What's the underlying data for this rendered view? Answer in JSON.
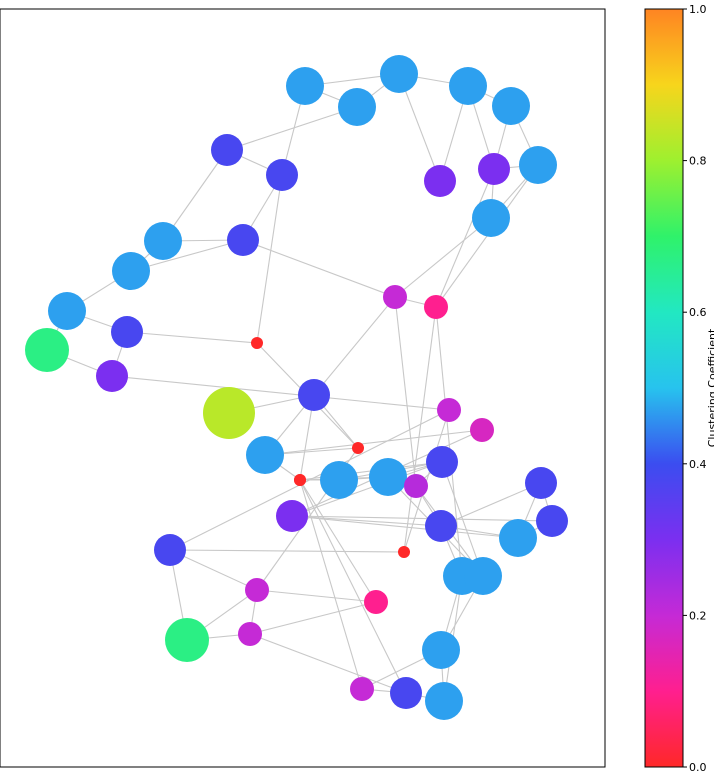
{
  "chart_data": {
    "type": "network",
    "colormap": "gist_rainbow",
    "colorbar": {
      "label": "Clustering Coefficient",
      "range": [
        0.0,
        1.0
      ],
      "ticks": [
        "0.0",
        "0.2",
        "0.4",
        "0.6",
        "0.8",
        "1.0"
      ],
      "tick_values": [
        0.0,
        0.2,
        0.4,
        0.6,
        0.8,
        1.0
      ]
    },
    "nodes": [
      {
        "id": 1,
        "value": 0.47,
        "size": "large"
      },
      {
        "id": 2,
        "value": 0.47,
        "size": "large"
      },
      {
        "id": 3,
        "value": 0.47,
        "size": "large"
      },
      {
        "id": 4,
        "value": 0.47,
        "size": "large"
      },
      {
        "id": 5,
        "value": 0.47,
        "size": "large"
      },
      {
        "id": 6,
        "value": 0.38,
        "size": "medium"
      },
      {
        "id": 7,
        "value": 0.38,
        "size": "medium"
      },
      {
        "id": 8,
        "value": 0.3,
        "size": "medium"
      },
      {
        "id": 9,
        "value": 0.3,
        "size": "medium"
      },
      {
        "id": 10,
        "value": 0.47,
        "size": "large"
      },
      {
        "id": 11,
        "value": 0.47,
        "size": "large"
      },
      {
        "id": 12,
        "value": 0.47,
        "size": "large"
      },
      {
        "id": 13,
        "value": 0.38,
        "size": "medium"
      },
      {
        "id": 14,
        "value": 0.47,
        "size": "large"
      },
      {
        "id": 15,
        "value": 0.47,
        "size": "large"
      },
      {
        "id": 16,
        "value": 0.38,
        "size": "medium"
      },
      {
        "id": 17,
        "value": 0.67,
        "size": "xlarge"
      },
      {
        "id": 18,
        "value": 0.3,
        "size": "medium"
      },
      {
        "id": 19,
        "value": 0.2,
        "size": "small"
      },
      {
        "id": 20,
        "value": 0.1,
        "size": "small"
      },
      {
        "id": 21,
        "value": 0.0,
        "size": "tiny"
      },
      {
        "id": 22,
        "value": 0.38,
        "size": "medium"
      },
      {
        "id": 23,
        "value": 0.83,
        "size": "xxlarge"
      },
      {
        "id": 24,
        "value": 0.2,
        "size": "small"
      },
      {
        "id": 25,
        "value": 0.17,
        "size": "small"
      },
      {
        "id": 26,
        "value": 0.47,
        "size": "large"
      },
      {
        "id": 27,
        "value": 0.0,
        "size": "tiny"
      },
      {
        "id": 28,
        "value": 0.0,
        "size": "tiny"
      },
      {
        "id": 29,
        "value": 0.47,
        "size": "large"
      },
      {
        "id": 30,
        "value": 0.47,
        "size": "large"
      },
      {
        "id": 31,
        "value": 0.38,
        "size": "medium"
      },
      {
        "id": 32,
        "value": 0.22,
        "size": "small"
      },
      {
        "id": 33,
        "value": 0.38,
        "size": "medium"
      },
      {
        "id": 34,
        "value": 0.38,
        "size": "medium"
      },
      {
        "id": 35,
        "value": 0.3,
        "size": "medium"
      },
      {
        "id": 36,
        "value": 0.38,
        "size": "medium"
      },
      {
        "id": 37,
        "value": 0.47,
        "size": "large"
      },
      {
        "id": 38,
        "value": 0.38,
        "size": "medium"
      },
      {
        "id": 39,
        "value": 0.0,
        "size": "tiny"
      },
      {
        "id": 40,
        "value": 0.47,
        "size": "large"
      },
      {
        "id": 41,
        "value": 0.47,
        "size": "large"
      },
      {
        "id": 42,
        "value": 0.2,
        "size": "small"
      },
      {
        "id": 43,
        "value": 0.1,
        "size": "small"
      },
      {
        "id": 44,
        "value": 0.67,
        "size": "xlarge"
      },
      {
        "id": 45,
        "value": 0.2,
        "size": "small"
      },
      {
        "id": 46,
        "value": 0.47,
        "size": "large"
      },
      {
        "id": 47,
        "value": 0.2,
        "size": "small"
      },
      {
        "id": 48,
        "value": 0.38,
        "size": "medium"
      },
      {
        "id": 49,
        "value": 0.47,
        "size": "large"
      },
      {
        "id": 50,
        "value": 0.0,
        "size": "tiny"
      }
    ],
    "edges": [
      [
        1,
        2
      ],
      [
        2,
        3
      ],
      [
        3,
        4
      ],
      [
        4,
        5
      ],
      [
        1,
        3
      ],
      [
        3,
        8
      ],
      [
        4,
        8
      ],
      [
        5,
        9
      ],
      [
        4,
        9
      ],
      [
        2,
        6
      ],
      [
        1,
        7
      ],
      [
        6,
        7
      ],
      [
        5,
        10
      ],
      [
        9,
        10
      ],
      [
        10,
        11
      ],
      [
        11,
        19
      ],
      [
        20,
        9
      ],
      [
        9,
        11
      ],
      [
        6,
        12
      ],
      [
        12,
        13
      ],
      [
        13,
        7
      ],
      [
        12,
        14
      ],
      [
        14,
        15
      ],
      [
        14,
        13
      ],
      [
        15,
        16
      ],
      [
        15,
        17
      ],
      [
        17,
        18
      ],
      [
        16,
        18
      ],
      [
        16,
        21
      ],
      [
        18,
        24
      ],
      [
        13,
        19
      ],
      [
        19,
        32
      ],
      [
        19,
        20
      ],
      [
        20,
        40
      ],
      [
        20,
        39
      ],
      [
        10,
        20
      ],
      [
        21,
        7
      ],
      [
        21,
        27
      ],
      [
        22,
        23
      ],
      [
        22,
        19
      ],
      [
        22,
        27
      ],
      [
        27,
        26
      ],
      [
        26,
        28
      ],
      [
        28,
        29
      ],
      [
        29,
        30
      ],
      [
        30,
        31
      ],
      [
        31,
        32
      ],
      [
        32,
        33
      ],
      [
        33,
        34
      ],
      [
        32,
        30
      ],
      [
        29,
        31
      ],
      [
        31,
        35
      ],
      [
        35,
        33
      ],
      [
        36,
        37
      ],
      [
        35,
        36
      ],
      [
        35,
        37
      ],
      [
        31,
        41
      ],
      [
        30,
        41
      ],
      [
        32,
        41
      ],
      [
        40,
        41
      ],
      [
        33,
        40
      ],
      [
        40,
        46
      ],
      [
        41,
        46
      ],
      [
        46,
        47
      ],
      [
        46,
        49
      ],
      [
        47,
        48
      ],
      [
        45,
        48
      ],
      [
        45,
        43
      ],
      [
        43,
        50
      ],
      [
        50,
        30
      ],
      [
        50,
        48
      ],
      [
        42,
        43
      ],
      [
        42,
        45
      ],
      [
        42,
        44
      ],
      [
        44,
        45
      ],
      [
        38,
        42
      ],
      [
        38,
        44
      ],
      [
        38,
        39
      ],
      [
        38,
        24
      ],
      [
        39,
        24
      ],
      [
        42,
        27
      ],
      [
        28,
        22
      ],
      [
        26,
        22
      ],
      [
        34,
        37
      ],
      [
        33,
        37
      ],
      [
        34,
        36
      ],
      [
        47,
        50
      ],
      [
        49,
        48
      ],
      [
        31,
        28
      ],
      [
        25,
        26
      ],
      [
        25,
        35
      ],
      [
        40,
        49
      ]
    ]
  }
}
